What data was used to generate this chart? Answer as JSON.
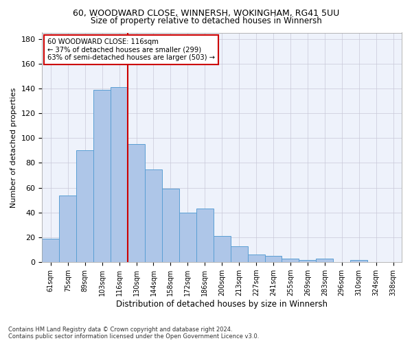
{
  "title1": "60, WOODWARD CLOSE, WINNERSH, WOKINGHAM, RG41 5UU",
  "title2": "Size of property relative to detached houses in Winnersh",
  "xlabel": "Distribution of detached houses by size in Winnersh",
  "ylabel": "Number of detached properties",
  "footnote": "Contains HM Land Registry data © Crown copyright and database right 2024.\nContains public sector information licensed under the Open Government Licence v3.0.",
  "bin_labels": [
    "61sqm",
    "75sqm",
    "89sqm",
    "103sqm",
    "116sqm",
    "130sqm",
    "144sqm",
    "158sqm",
    "172sqm",
    "186sqm",
    "200sqm",
    "213sqm",
    "227sqm",
    "241sqm",
    "255sqm",
    "269sqm",
    "283sqm",
    "296sqm",
    "310sqm",
    "324sqm",
    "338sqm"
  ],
  "bar_values": [
    19,
    54,
    90,
    139,
    141,
    95,
    75,
    59,
    40,
    43,
    21,
    13,
    6,
    5,
    3,
    2,
    3,
    0,
    2,
    0,
    0
  ],
  "bar_color": "#aec6e8",
  "bar_edge_color": "#5a9fd4",
  "vline_x_index": 4,
  "vline_color": "#cc0000",
  "annotation_line1": "60 WOODWARD CLOSE: 116sqm",
  "annotation_line2": "← 37% of detached houses are smaller (299)",
  "annotation_line3": "63% of semi-detached houses are larger (503) →",
  "ylim": [
    0,
    185
  ],
  "yticks": [
    0,
    20,
    40,
    60,
    80,
    100,
    120,
    140,
    160,
    180
  ],
  "background_color": "#eef2fb",
  "grid_color": "#c8c8d8"
}
